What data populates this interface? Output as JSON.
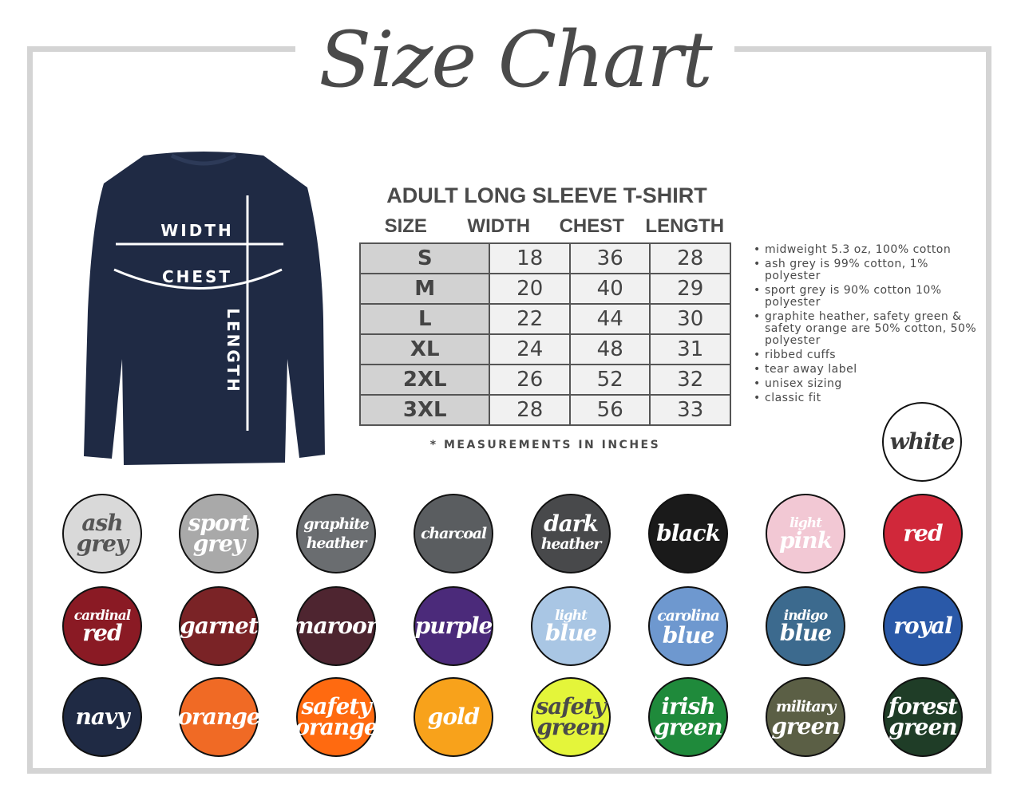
{
  "title": "Size Chart",
  "shirt": {
    "color": "#1f2a44",
    "width_label": "WIDTH",
    "chest_label": "CHEST",
    "length_label": "LENGTH"
  },
  "table": {
    "title": "ADULT LONG SLEEVE T-SHIRT",
    "headers": [
      "SIZE",
      "WIDTH",
      "CHEST",
      "LENGTH"
    ],
    "rows": [
      [
        "S",
        "18",
        "36",
        "28"
      ],
      [
        "M",
        "20",
        "40",
        "29"
      ],
      [
        "L",
        "22",
        "44",
        "30"
      ],
      [
        "XL",
        "24",
        "48",
        "31"
      ],
      [
        "2XL",
        "26",
        "52",
        "32"
      ],
      [
        "3XL",
        "28",
        "56",
        "33"
      ]
    ],
    "note": "* MEASUREMENTS IN INCHES"
  },
  "features": [
    "midweight 5.3 oz, 100% cotton",
    "ash grey is 99% cotton, 1% polyester",
    "sport grey is 90% cotton 10% polyester",
    "graphite heather, safety green & safety orange are 50% cotton, 50% polyester",
    "ribbed cuffs",
    "tear away label",
    "unisex sizing",
    "classic fit"
  ],
  "colors": [
    {
      "lines": [
        "white"
      ],
      "bg": "#ffffff",
      "fg": "#3a3a3a"
    },
    {
      "lines": [
        "ash",
        "grey"
      ],
      "bg": "#d9d9d9",
      "fg": "#555555"
    },
    {
      "lines": [
        "sport",
        "grey"
      ],
      "bg": "#a9a9a9",
      "fg": "#ffffff"
    },
    {
      "lines": [
        "graphite",
        "heather"
      ],
      "bg": "#6a6d70",
      "fg": "#ffffff"
    },
    {
      "lines": [
        "charcoal"
      ],
      "bg": "#5a5d60",
      "fg": "#ffffff"
    },
    {
      "lines": [
        "dark",
        "heather"
      ],
      "bg": "#48494b",
      "fg": "#ffffff"
    },
    {
      "lines": [
        "black"
      ],
      "bg": "#1a1a1a",
      "fg": "#ffffff"
    },
    {
      "lines": [
        "light",
        "pink"
      ],
      "bg": "#f2c8d4",
      "fg": "#ffffff"
    },
    {
      "lines": [
        "red"
      ],
      "bg": "#d0283a",
      "fg": "#ffffff"
    },
    {
      "lines": [
        "cardinal",
        "red"
      ],
      "bg": "#8a1a24",
      "fg": "#ffffff"
    },
    {
      "lines": [
        "garnet"
      ],
      "bg": "#7a2326",
      "fg": "#ffffff"
    },
    {
      "lines": [
        "maroon"
      ],
      "bg": "#4e2530",
      "fg": "#ffffff"
    },
    {
      "lines": [
        "purple"
      ],
      "bg": "#4b2a7a",
      "fg": "#ffffff"
    },
    {
      "lines": [
        "light",
        "blue"
      ],
      "bg": "#a9c6e4",
      "fg": "#ffffff"
    },
    {
      "lines": [
        "carolina",
        "blue"
      ],
      "bg": "#6e98cf",
      "fg": "#ffffff"
    },
    {
      "lines": [
        "indigo",
        "blue"
      ],
      "bg": "#3c6a8e",
      "fg": "#ffffff"
    },
    {
      "lines": [
        "royal"
      ],
      "bg": "#2a59a8",
      "fg": "#ffffff"
    },
    {
      "lines": [
        "navy"
      ],
      "bg": "#1f2a44",
      "fg": "#ffffff"
    },
    {
      "lines": [
        "orange"
      ],
      "bg": "#f06a25",
      "fg": "#ffffff"
    },
    {
      "lines": [
        "safety",
        "orange"
      ],
      "bg": "#ff6a10",
      "fg": "#ffffff"
    },
    {
      "lines": [
        "gold"
      ],
      "bg": "#f8a21b",
      "fg": "#ffffff"
    },
    {
      "lines": [
        "safety",
        "green"
      ],
      "bg": "#e4f53a",
      "fg": "#4a4a4a"
    },
    {
      "lines": [
        "irish",
        "green"
      ],
      "bg": "#1f8a3b",
      "fg": "#ffffff"
    },
    {
      "lines": [
        "military",
        "green"
      ],
      "bg": "#5b5f45",
      "fg": "#ffffff"
    },
    {
      "lines": [
        "forest",
        "green"
      ],
      "bg": "#1f3d27",
      "fg": "#ffffff"
    }
  ]
}
